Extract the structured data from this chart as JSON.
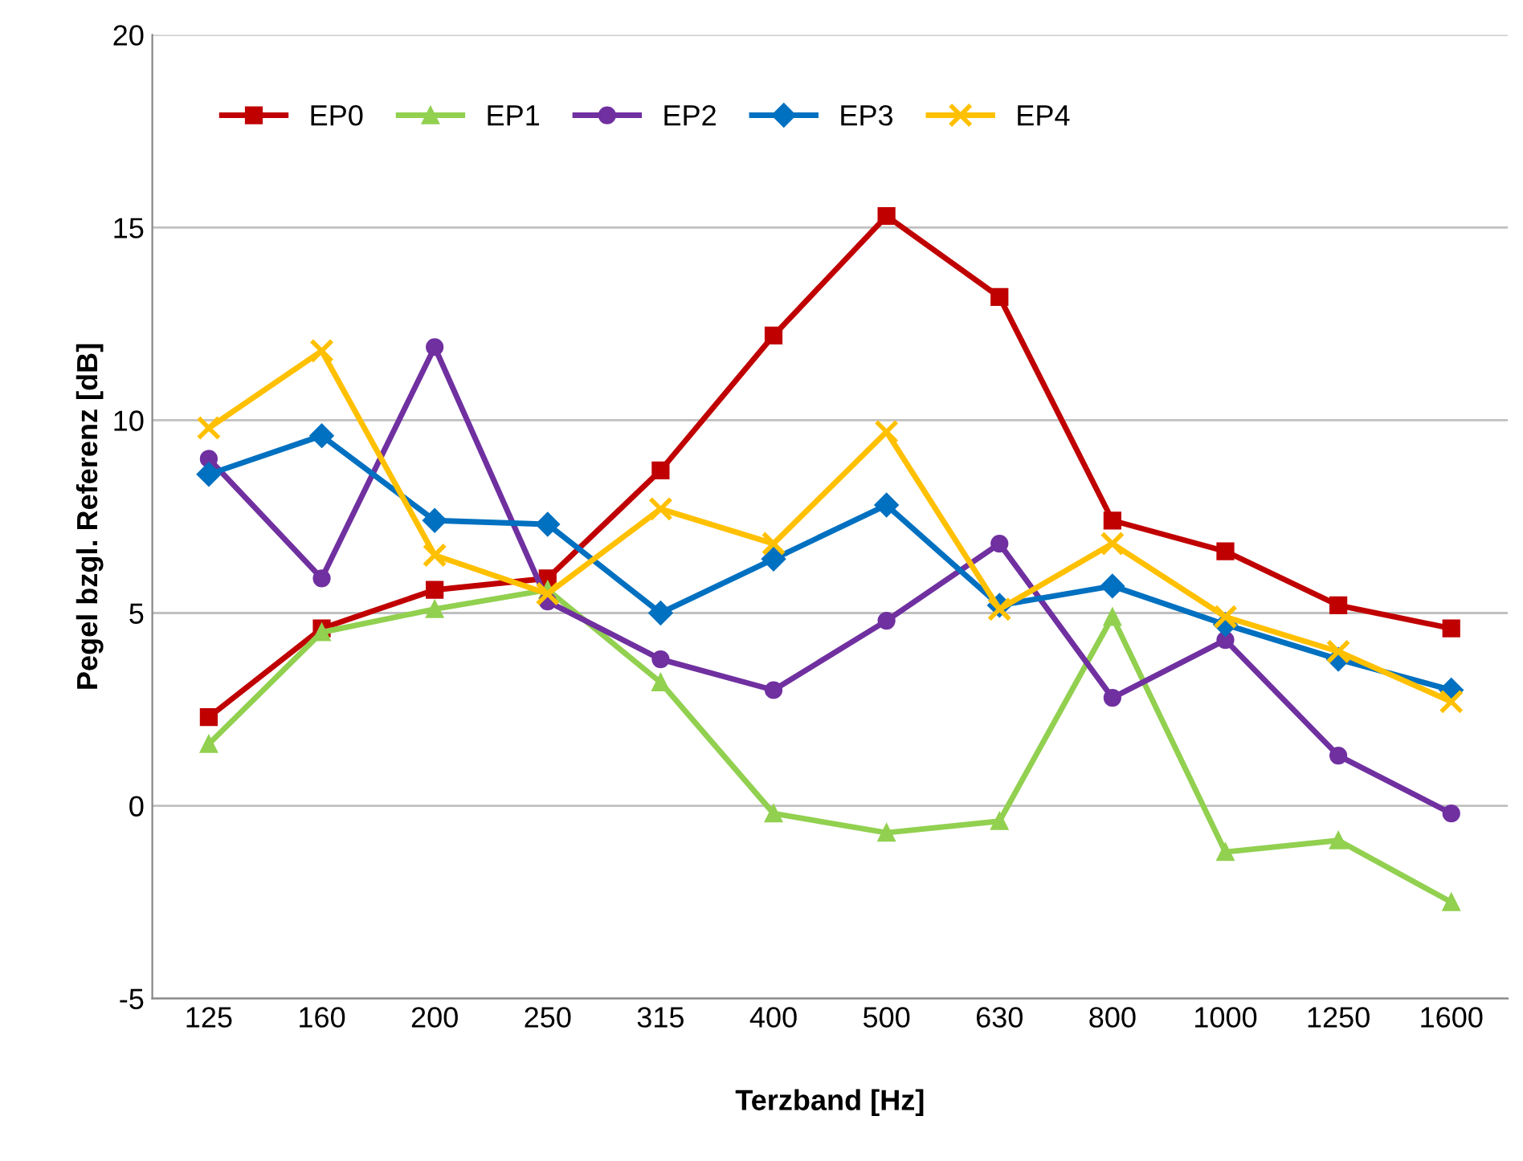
{
  "chart_data": {
    "type": "line",
    "xlabel": "Terzband [Hz]",
    "ylabel": "Pegel bzgl. Referenz [dB]",
    "categories": [
      "125",
      "160",
      "200",
      "250",
      "315",
      "400",
      "500",
      "630",
      "800",
      "1000",
      "1250",
      "1600"
    ],
    "series": [
      {
        "name": "EP0",
        "color": "#c00000",
        "marker": "square",
        "values": [
          2.3,
          4.6,
          5.6,
          5.9,
          8.7,
          12.2,
          15.3,
          13.2,
          7.4,
          6.6,
          5.2,
          4.6
        ]
      },
      {
        "name": "EP1",
        "color": "#92d050",
        "marker": "triangle",
        "values": [
          1.6,
          4.5,
          5.1,
          5.6,
          3.2,
          -0.2,
          -0.7,
          -0.4,
          4.9,
          -1.2,
          -0.9,
          -2.5
        ]
      },
      {
        "name": "EP2",
        "color": "#7030a0",
        "marker": "circle",
        "values": [
          9.0,
          5.9,
          11.9,
          5.3,
          3.8,
          3.0,
          4.8,
          6.8,
          2.8,
          4.3,
          1.3,
          -0.2
        ]
      },
      {
        "name": "EP3",
        "color": "#0070c0",
        "marker": "diamond",
        "values": [
          8.6,
          9.6,
          7.4,
          7.3,
          5.0,
          6.4,
          7.8,
          5.2,
          5.7,
          4.7,
          3.8,
          3.0
        ]
      },
      {
        "name": "EP4",
        "color": "#ffc000",
        "marker": "cross",
        "values": [
          9.8,
          11.8,
          6.5,
          5.5,
          7.7,
          6.8,
          9.7,
          5.1,
          6.8,
          4.9,
          4.0,
          2.7
        ]
      }
    ],
    "ylim": [
      -5,
      20
    ],
    "yticks": [
      -5,
      0,
      5,
      10,
      15,
      20
    ],
    "grid": "y",
    "legend": "top left",
    "line_style": "solid"
  }
}
